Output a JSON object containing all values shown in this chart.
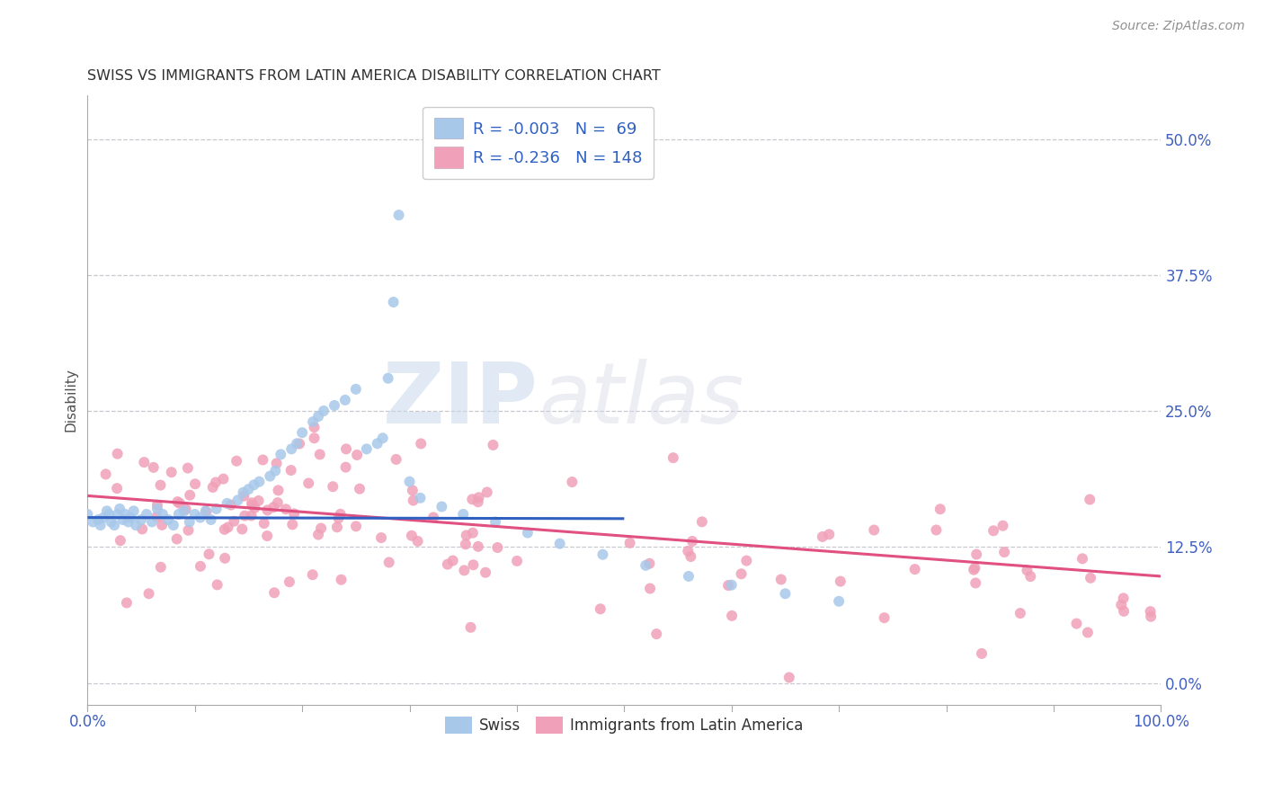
{
  "title": "SWISS VS IMMIGRANTS FROM LATIN AMERICA DISABILITY CORRELATION CHART",
  "source": "Source: ZipAtlas.com",
  "ylabel": "Disability",
  "xlim": [
    0,
    1
  ],
  "ylim": [
    -0.02,
    0.54
  ],
  "yticks": [
    0.0,
    0.125,
    0.25,
    0.375,
    0.5
  ],
  "ytick_labels": [
    "0.0%",
    "12.5%",
    "25.0%",
    "37.5%",
    "50.0%"
  ],
  "xticks": [
    0.0,
    1.0
  ],
  "xtick_labels": [
    "0.0%",
    "100.0%"
  ],
  "grid_color": "#c8c8d0",
  "background_color": "#ffffff",
  "watermark_zip": "ZIP",
  "watermark_atlas": "atlas",
  "swiss_color": "#a8c8ea",
  "latin_color": "#f0a0b8",
  "swiss_line_color": "#3060c0",
  "latin_line_color": "#e05080",
  "tick_color": "#4060c0",
  "title_color": "#303030",
  "source_color": "#909090",
  "ylabel_color": "#505050",
  "legend_label_color": "#3060c0",
  "bottom_legend_color": "#303030",
  "swiss_trendline_start_y": 0.152,
  "swiss_trendline_end_y": 0.151,
  "latin_trendline_start_y": 0.172,
  "latin_trendline_end_y": 0.098
}
